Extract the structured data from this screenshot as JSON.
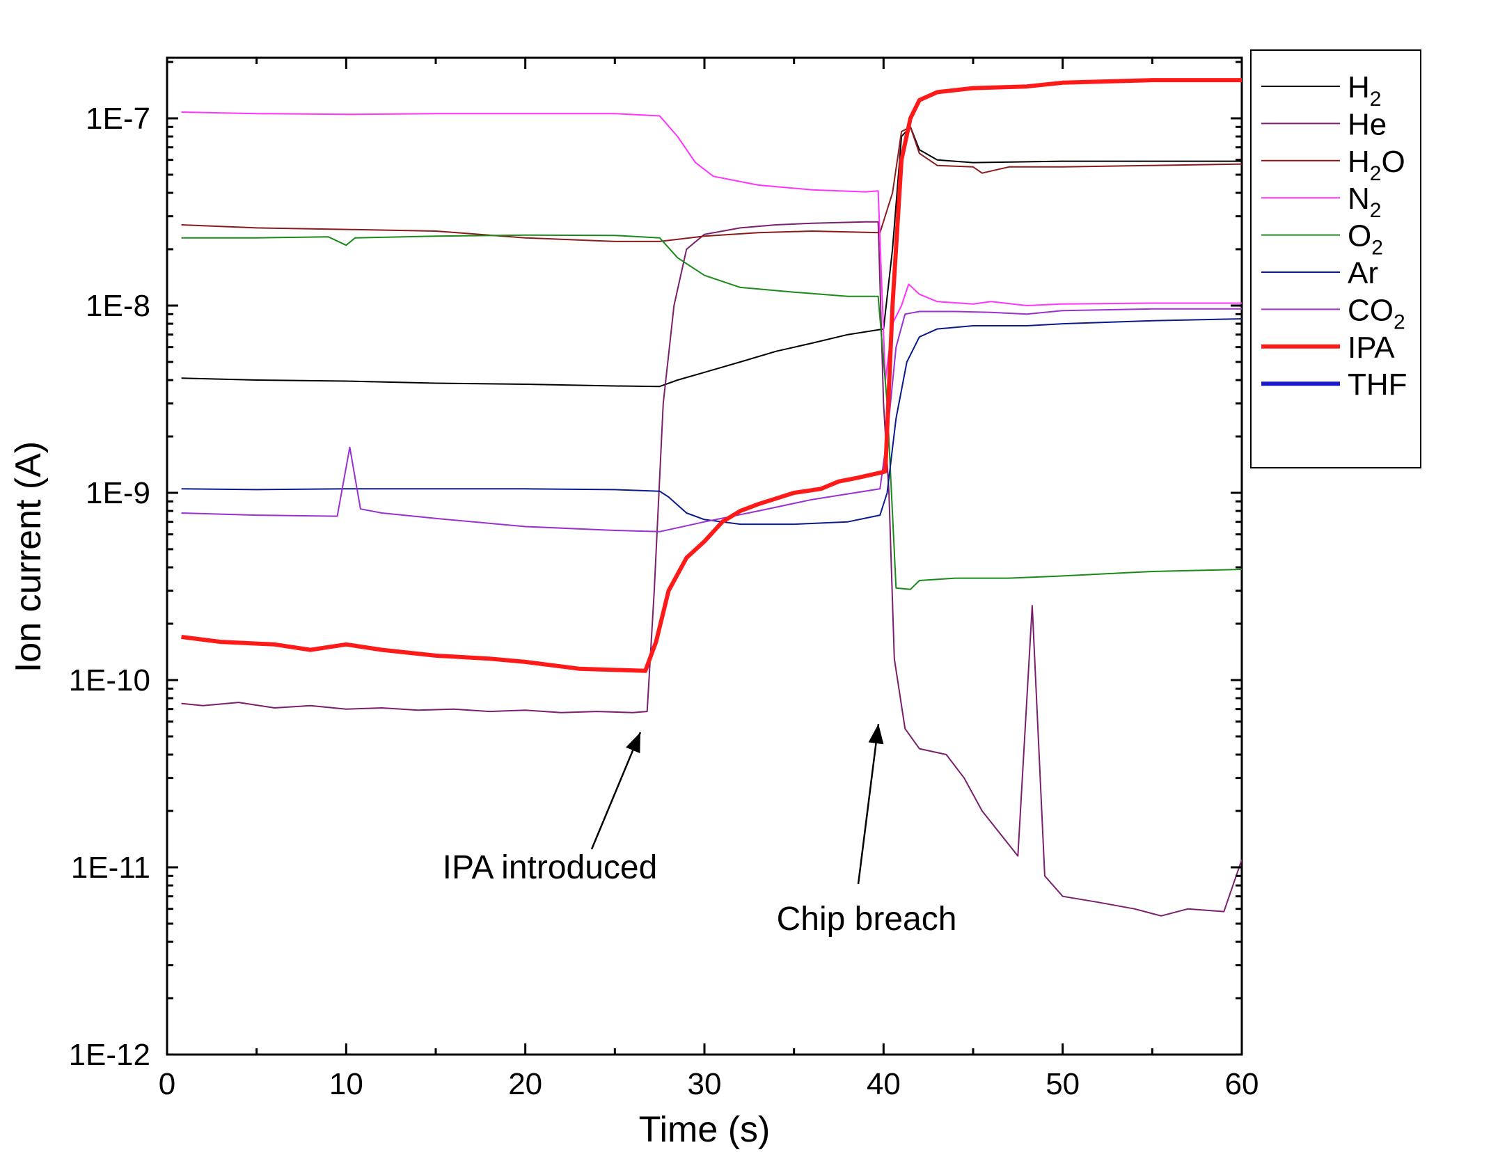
{
  "chart_data": {
    "type": "line",
    "xlabel": "Time (s)",
    "ylabel": "Ion current (A)",
    "xlim": [
      0,
      60
    ],
    "ylim": [
      1e-12,
      2e-07
    ],
    "y_scale": "log",
    "grid": false,
    "legend_position": "outside-right",
    "x_ticks": [
      "0",
      "10",
      "20",
      "30",
      "40",
      "50",
      "60"
    ],
    "y_ticks": [
      "1E-12",
      "1E-11",
      "1E-10",
      "1E-9",
      "1E-8",
      "1E-7"
    ],
    "series": [
      {
        "name": "H",
        "sub": "2",
        "color": "#000000",
        "width": 2,
        "points": [
          [
            0.8,
            4.1e-09
          ],
          [
            5,
            4e-09
          ],
          [
            10,
            3.95e-09
          ],
          [
            15,
            3.85e-09
          ],
          [
            20,
            3.8e-09
          ],
          [
            25,
            3.72e-09
          ],
          [
            27.5,
            3.7e-09
          ],
          [
            28.5,
            4e-09
          ],
          [
            30,
            4.4e-09
          ],
          [
            32,
            5e-09
          ],
          [
            34,
            5.7e-09
          ],
          [
            36,
            6.3e-09
          ],
          [
            38,
            7e-09
          ],
          [
            40,
            7.5e-09
          ],
          [
            40.5,
            2e-08
          ],
          [
            41,
            8e-08
          ],
          [
            41.5,
            9e-08
          ],
          [
            42,
            6.8e-08
          ],
          [
            43,
            6e-08
          ],
          [
            45,
            5.8e-08
          ],
          [
            50,
            5.9e-08
          ],
          [
            55,
            5.9e-08
          ],
          [
            60,
            5.9e-08
          ]
        ]
      },
      {
        "name": "He",
        "sub": "",
        "color": "#7a1f6e",
        "width": 2,
        "points": [
          [
            0.8,
            7.5e-11
          ],
          [
            2,
            7.3e-11
          ],
          [
            4,
            7.6e-11
          ],
          [
            6,
            7.1e-11
          ],
          [
            8,
            7.3e-11
          ],
          [
            10,
            7e-11
          ],
          [
            12,
            7.1e-11
          ],
          [
            14,
            6.9e-11
          ],
          [
            16,
            7e-11
          ],
          [
            18,
            6.8e-11
          ],
          [
            20,
            6.9e-11
          ],
          [
            22,
            6.7e-11
          ],
          [
            24,
            6.8e-11
          ],
          [
            26,
            6.7e-11
          ],
          [
            26.8,
            6.8e-11
          ],
          [
            27.2,
            3e-10
          ],
          [
            27.7,
            3e-09
          ],
          [
            28.3,
            1e-08
          ],
          [
            29,
            2e-08
          ],
          [
            30,
            2.4e-08
          ],
          [
            32,
            2.6e-08
          ],
          [
            34,
            2.7e-08
          ],
          [
            36,
            2.75e-08
          ],
          [
            39,
            2.8e-08
          ],
          [
            39.7,
            2.8e-08
          ],
          [
            40,
            3e-09
          ],
          [
            40.3,
            1e-09
          ],
          [
            40.6,
            1.3e-10
          ],
          [
            41.2,
            5.5e-11
          ],
          [
            42,
            4.3e-11
          ],
          [
            43.5,
            4e-11
          ],
          [
            44.5,
            3e-11
          ],
          [
            45.5,
            2e-11
          ],
          [
            47.5,
            1.15e-11
          ],
          [
            48.3,
            2.5e-10
          ],
          [
            49,
            9e-12
          ],
          [
            50,
            7e-12
          ],
          [
            52,
            6.5e-12
          ],
          [
            54,
            6e-12
          ],
          [
            55.5,
            5.5e-12
          ],
          [
            57,
            6e-12
          ],
          [
            59,
            5.8e-12
          ],
          [
            60,
            1.1e-11
          ]
        ]
      },
      {
        "name": "H",
        "sub": "2",
        "tail": "O",
        "color": "#8b1a1a",
        "width": 2,
        "points": [
          [
            0.8,
            2.7e-08
          ],
          [
            5,
            2.6e-08
          ],
          [
            10,
            2.55e-08
          ],
          [
            15,
            2.5e-08
          ],
          [
            20,
            2.3e-08
          ],
          [
            25,
            2.2e-08
          ],
          [
            27.5,
            2.2e-08
          ],
          [
            30,
            2.35e-08
          ],
          [
            33,
            2.45e-08
          ],
          [
            36,
            2.5e-08
          ],
          [
            39.8,
            2.45e-08
          ],
          [
            40.5,
            4e-08
          ],
          [
            41,
            8.5e-08
          ],
          [
            41.5,
            9e-08
          ],
          [
            42,
            6.5e-08
          ],
          [
            43,
            5.6e-08
          ],
          [
            45,
            5.5e-08
          ],
          [
            45.5,
            5.1e-08
          ],
          [
            47,
            5.5e-08
          ],
          [
            50,
            5.5e-08
          ],
          [
            55,
            5.6e-08
          ],
          [
            60,
            5.7e-08
          ]
        ]
      },
      {
        "name": "N",
        "sub": "2",
        "color": "#ff33ff",
        "width": 2,
        "points": [
          [
            0.8,
            1.08e-07
          ],
          [
            5,
            1.06e-07
          ],
          [
            10,
            1.05e-07
          ],
          [
            15,
            1.06e-07
          ],
          [
            20,
            1.06e-07
          ],
          [
            25,
            1.06e-07
          ],
          [
            27.5,
            1.03e-07
          ],
          [
            28.5,
            8e-08
          ],
          [
            29.5,
            5.8e-08
          ],
          [
            30.5,
            4.9e-08
          ],
          [
            33,
            4.4e-08
          ],
          [
            36,
            4.15e-08
          ],
          [
            39,
            4.05e-08
          ],
          [
            39.7,
            4.1e-08
          ],
          [
            40.1,
            4e-09
          ],
          [
            40.5,
            8e-09
          ],
          [
            41,
            1e-08
          ],
          [
            41.4,
            1.3e-08
          ],
          [
            42,
            1.15e-08
          ],
          [
            43,
            1.05e-08
          ],
          [
            45,
            1.02e-08
          ],
          [
            46,
            1.05e-08
          ],
          [
            48,
            1e-08
          ],
          [
            50,
            1.02e-08
          ],
          [
            55,
            1.03e-08
          ],
          [
            60,
            1.03e-08
          ]
        ]
      },
      {
        "name": "O",
        "sub": "2",
        "color": "#1a8a1a",
        "width": 2,
        "points": [
          [
            0.8,
            2.3e-08
          ],
          [
            5,
            2.3e-08
          ],
          [
            9,
            2.33e-08
          ],
          [
            10,
            2.1e-08
          ],
          [
            10.5,
            2.3e-08
          ],
          [
            15,
            2.35e-08
          ],
          [
            20,
            2.38e-08
          ],
          [
            25,
            2.37e-08
          ],
          [
            27.5,
            2.3e-08
          ],
          [
            28.5,
            1.8e-08
          ],
          [
            30,
            1.45e-08
          ],
          [
            32,
            1.25e-08
          ],
          [
            35,
            1.18e-08
          ],
          [
            38,
            1.12e-08
          ],
          [
            39.7,
            1.12e-08
          ],
          [
            40.2,
            3e-09
          ],
          [
            40.7,
            3.1e-10
          ],
          [
            41.5,
            3.05e-10
          ],
          [
            42,
            3.4e-10
          ],
          [
            44,
            3.5e-10
          ],
          [
            47,
            3.5e-10
          ],
          [
            50,
            3.6e-10
          ],
          [
            55,
            3.8e-10
          ],
          [
            60,
            3.9e-10
          ]
        ]
      },
      {
        "name": "Ar",
        "sub": "",
        "color": "#0a1a8a",
        "width": 2,
        "points": [
          [
            0.8,
            1.05e-09
          ],
          [
            5,
            1.04e-09
          ],
          [
            10,
            1.05e-09
          ],
          [
            15,
            1.05e-09
          ],
          [
            20,
            1.05e-09
          ],
          [
            25,
            1.04e-09
          ],
          [
            27.5,
            1.02e-09
          ],
          [
            28,
            9.5e-10
          ],
          [
            29,
            7.8e-10
          ],
          [
            30,
            7.2e-10
          ],
          [
            32,
            6.8e-10
          ],
          [
            35,
            6.8e-10
          ],
          [
            38,
            7e-10
          ],
          [
            39.8,
            7.6e-10
          ],
          [
            40.2,
            1e-09
          ],
          [
            40.7,
            2.5e-09
          ],
          [
            41.3,
            5e-09
          ],
          [
            42,
            6.8e-09
          ],
          [
            43,
            7.5e-09
          ],
          [
            45,
            7.8e-09
          ],
          [
            48,
            7.8e-09
          ],
          [
            50,
            8e-09
          ],
          [
            55,
            8.3e-09
          ],
          [
            60,
            8.5e-09
          ]
        ]
      },
      {
        "name": "CO",
        "sub": "2",
        "color": "#9b30d0",
        "width": 2,
        "points": [
          [
            0.8,
            7.8e-10
          ],
          [
            5,
            7.6e-10
          ],
          [
            9.5,
            7.5e-10
          ],
          [
            10.2,
            1.75e-09
          ],
          [
            10.8,
            8.2e-10
          ],
          [
            12,
            7.8e-10
          ],
          [
            15,
            7.3e-10
          ],
          [
            20,
            6.6e-10
          ],
          [
            25,
            6.3e-10
          ],
          [
            27.5,
            6.2e-10
          ],
          [
            30,
            7e-10
          ],
          [
            33,
            8e-10
          ],
          [
            36,
            9.2e-10
          ],
          [
            39.8,
            1.05e-09
          ],
          [
            40.2,
            2e-09
          ],
          [
            40.7,
            6e-09
          ],
          [
            41.2,
            9e-09
          ],
          [
            42,
            9.3e-09
          ],
          [
            44,
            9.3e-09
          ],
          [
            46,
            9.2e-09
          ],
          [
            48,
            9e-09
          ],
          [
            50,
            9.4e-09
          ],
          [
            55,
            9.6e-09
          ],
          [
            60,
            9.6e-09
          ]
        ]
      },
      {
        "name": "IPA",
        "sub": "",
        "color": "#ff1a1a",
        "width": 6,
        "points": [
          [
            0.8,
            1.7e-10
          ],
          [
            3,
            1.6e-10
          ],
          [
            6,
            1.55e-10
          ],
          [
            8,
            1.45e-10
          ],
          [
            10,
            1.55e-10
          ],
          [
            12,
            1.45e-10
          ],
          [
            15,
            1.35e-10
          ],
          [
            18,
            1.3e-10
          ],
          [
            20,
            1.25e-10
          ],
          [
            23,
            1.15e-10
          ],
          [
            26.7,
            1.12e-10
          ],
          [
            27.3,
            1.6e-10
          ],
          [
            28,
            3e-10
          ],
          [
            29,
            4.5e-10
          ],
          [
            30,
            5.5e-10
          ],
          [
            31,
            7e-10
          ],
          [
            32,
            8e-10
          ],
          [
            33,
            8.7e-10
          ],
          [
            35,
            1e-09
          ],
          [
            36.5,
            1.05e-09
          ],
          [
            37.5,
            1.15e-09
          ],
          [
            38.5,
            1.2e-09
          ],
          [
            39.8,
            1.28e-09
          ],
          [
            40.1,
            1.3e-09
          ],
          [
            40.5,
            1e-08
          ],
          [
            41,
            6e-08
          ],
          [
            41.5,
            1e-07
          ],
          [
            42,
            1.25e-07
          ],
          [
            43,
            1.38e-07
          ],
          [
            45,
            1.45e-07
          ],
          [
            48,
            1.48e-07
          ],
          [
            50,
            1.55e-07
          ],
          [
            55,
            1.6e-07
          ],
          [
            60,
            1.6e-07
          ]
        ]
      },
      {
        "name": "THF",
        "sub": "",
        "color": "#1a1acc",
        "width": 6,
        "points": []
      }
    ],
    "annotations": [
      {
        "text": "IPA introduced",
        "x": 26.8,
        "y": 5e-11
      },
      {
        "text": "Chip breach",
        "x": 40,
        "y": 8.5e-11
      }
    ]
  }
}
